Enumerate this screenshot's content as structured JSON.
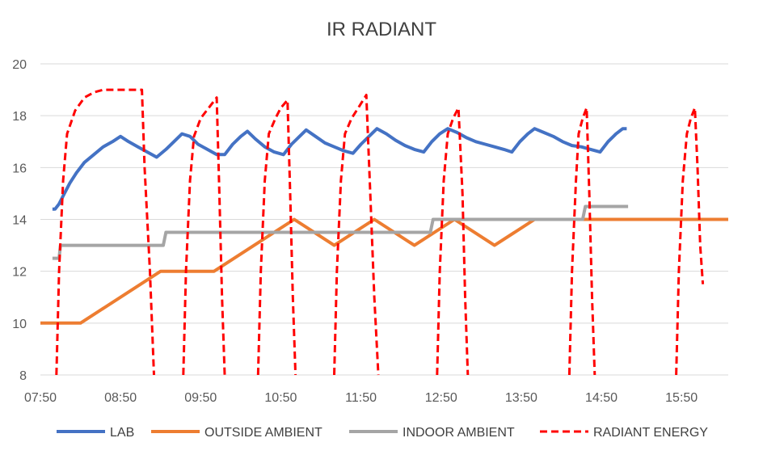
{
  "chart_data": {
    "type": "line",
    "title": "IR RADIANT",
    "xlabel": "",
    "ylabel": "",
    "x_range_minutes": [
      470,
      985
    ],
    "xtick_labels": [
      "07:50",
      "08:50",
      "09:50",
      "10:50",
      "11:50",
      "12:50",
      "13:50",
      "14:50",
      "15:50"
    ],
    "xtick_minutes": [
      470,
      530,
      590,
      650,
      710,
      770,
      830,
      890,
      950
    ],
    "ylim": [
      8,
      20
    ],
    "yticks": [
      8,
      10,
      12,
      14,
      16,
      18,
      20
    ],
    "grid": "horizontal",
    "legend_position": "bottom",
    "series": [
      {
        "name": "LAB",
        "color": "#4472c4",
        "dash": "solid",
        "points": [
          [
            479,
            14.4
          ],
          [
            481,
            14.4
          ],
          [
            484,
            14.6
          ],
          [
            488,
            15.0
          ],
          [
            492,
            15.4
          ],
          [
            497,
            15.8
          ],
          [
            503,
            16.2
          ],
          [
            510,
            16.5
          ],
          [
            517,
            16.8
          ],
          [
            524,
            17.0
          ],
          [
            530,
            17.2
          ],
          [
            536,
            17.0
          ],
          [
            543,
            16.8
          ],
          [
            550,
            16.6
          ],
          [
            557,
            16.4
          ],
          [
            564,
            16.7
          ],
          [
            570,
            17.0
          ],
          [
            576,
            17.3
          ],
          [
            582,
            17.2
          ],
          [
            588,
            16.9
          ],
          [
            595,
            16.7
          ],
          [
            602,
            16.5
          ],
          [
            608,
            16.5
          ],
          [
            614,
            16.9
          ],
          [
            620,
            17.2
          ],
          [
            625,
            17.4
          ],
          [
            631,
            17.1
          ],
          [
            638,
            16.8
          ],
          [
            645,
            16.6
          ],
          [
            652,
            16.5
          ],
          [
            658,
            16.9
          ],
          [
            664,
            17.2
          ],
          [
            669,
            17.45
          ],
          [
            676,
            17.2
          ],
          [
            683,
            16.95
          ],
          [
            690,
            16.8
          ],
          [
            697,
            16.65
          ],
          [
            704,
            16.55
          ],
          [
            710,
            16.9
          ],
          [
            716,
            17.2
          ],
          [
            722,
            17.5
          ],
          [
            729,
            17.3
          ],
          [
            736,
            17.05
          ],
          [
            743,
            16.85
          ],
          [
            750,
            16.7
          ],
          [
            757,
            16.6
          ],
          [
            763,
            17.0
          ],
          [
            769,
            17.3
          ],
          [
            775,
            17.5
          ],
          [
            782,
            17.35
          ],
          [
            789,
            17.15
          ],
          [
            796,
            17.0
          ],
          [
            803,
            16.9
          ],
          [
            810,
            16.8
          ],
          [
            817,
            16.7
          ],
          [
            823,
            16.6
          ],
          [
            829,
            17.0
          ],
          [
            835,
            17.3
          ],
          [
            840,
            17.5
          ],
          [
            847,
            17.35
          ],
          [
            854,
            17.2
          ],
          [
            861,
            17.0
          ],
          [
            868,
            16.85
          ],
          [
            875,
            16.8
          ],
          [
            882,
            16.7
          ],
          [
            889,
            16.6
          ],
          [
            895,
            17.0
          ],
          [
            901,
            17.3
          ],
          [
            906,
            17.5
          ],
          [
            909,
            17.5
          ]
        ]
      },
      {
        "name": "OUTSIDE AMBIENT",
        "color": "#ed7d31",
        "dash": "solid",
        "points": [
          [
            470,
            10
          ],
          [
            500,
            10
          ],
          [
            560,
            12
          ],
          [
            600,
            12
          ],
          [
            630,
            13
          ],
          [
            660,
            14
          ],
          [
            690,
            13
          ],
          [
            720,
            14
          ],
          [
            750,
            13
          ],
          [
            780,
            14
          ],
          [
            810,
            13
          ],
          [
            840,
            14
          ],
          [
            985,
            14
          ]
        ]
      },
      {
        "name": "INDOOR AMBIENT",
        "color": "#a5a5a5",
        "dash": "solid",
        "points": [
          [
            479,
            12.5
          ],
          [
            484,
            12.5
          ],
          [
            485,
            13.0
          ],
          [
            562,
            13.0
          ],
          [
            564,
            13.5
          ],
          [
            762,
            13.5
          ],
          [
            764,
            14.0
          ],
          [
            876,
            14.0
          ],
          [
            878,
            14.5
          ],
          [
            910,
            14.5
          ]
        ]
      },
      {
        "name": "RADIANT ENERGY",
        "color": "#ff0000",
        "dash": "dashed",
        "points": [
          [
            482,
            8
          ],
          [
            484,
            12
          ],
          [
            487,
            15.5
          ],
          [
            490,
            17.3
          ],
          [
            496,
            18.2
          ],
          [
            503,
            18.7
          ],
          [
            510,
            18.9
          ],
          [
            517,
            19.0
          ],
          [
            530,
            19.0
          ],
          [
            546,
            19.0
          ],
          [
            548,
            16
          ],
          [
            552,
            12
          ],
          [
            555,
            8
          ],
          [
            null,
            null
          ],
          [
            577,
            8
          ],
          [
            579,
            12
          ],
          [
            582,
            15.5
          ],
          [
            585,
            17.2
          ],
          [
            590,
            17.9
          ],
          [
            596,
            18.3
          ],
          [
            602,
            18.7
          ],
          [
            604,
            15
          ],
          [
            606,
            11
          ],
          [
            608,
            8
          ],
          [
            null,
            null
          ],
          [
            633,
            8
          ],
          [
            635,
            12
          ],
          [
            638,
            15.5
          ],
          [
            641,
            17.3
          ],
          [
            646,
            17.9
          ],
          [
            650,
            18.3
          ],
          [
            655,
            18.6
          ],
          [
            657,
            15
          ],
          [
            659,
            11
          ],
          [
            661,
            8
          ],
          [
            null,
            null
          ],
          [
            690,
            8
          ],
          [
            692,
            12
          ],
          [
            695,
            15.5
          ],
          [
            698,
            17.3
          ],
          [
            703,
            17.9
          ],
          [
            708,
            18.3
          ],
          [
            714,
            18.8
          ],
          [
            717,
            15
          ],
          [
            720,
            11
          ],
          [
            723,
            8
          ],
          [
            null,
            null
          ],
          [
            767,
            8
          ],
          [
            769,
            12
          ],
          [
            772,
            15.5
          ],
          [
            775,
            17.3
          ],
          [
            779,
            17.9
          ],
          [
            783,
            18.3
          ],
          [
            786,
            15
          ],
          [
            788,
            11
          ],
          [
            790,
            8
          ],
          [
            null,
            null
          ],
          [
            866,
            8
          ],
          [
            868,
            12
          ],
          [
            871,
            15.5
          ],
          [
            873,
            17.3
          ],
          [
            876,
            17.9
          ],
          [
            879,
            18.3
          ],
          [
            881,
            15
          ],
          [
            883,
            11
          ],
          [
            885,
            8
          ],
          [
            null,
            null
          ],
          [
            946,
            8
          ],
          [
            948,
            12
          ],
          [
            951,
            15.5
          ],
          [
            954,
            17.3
          ],
          [
            957,
            17.9
          ],
          [
            960,
            18.3
          ],
          [
            962,
            16
          ],
          [
            964,
            13
          ],
          [
            966,
            11.5
          ]
        ]
      }
    ]
  }
}
